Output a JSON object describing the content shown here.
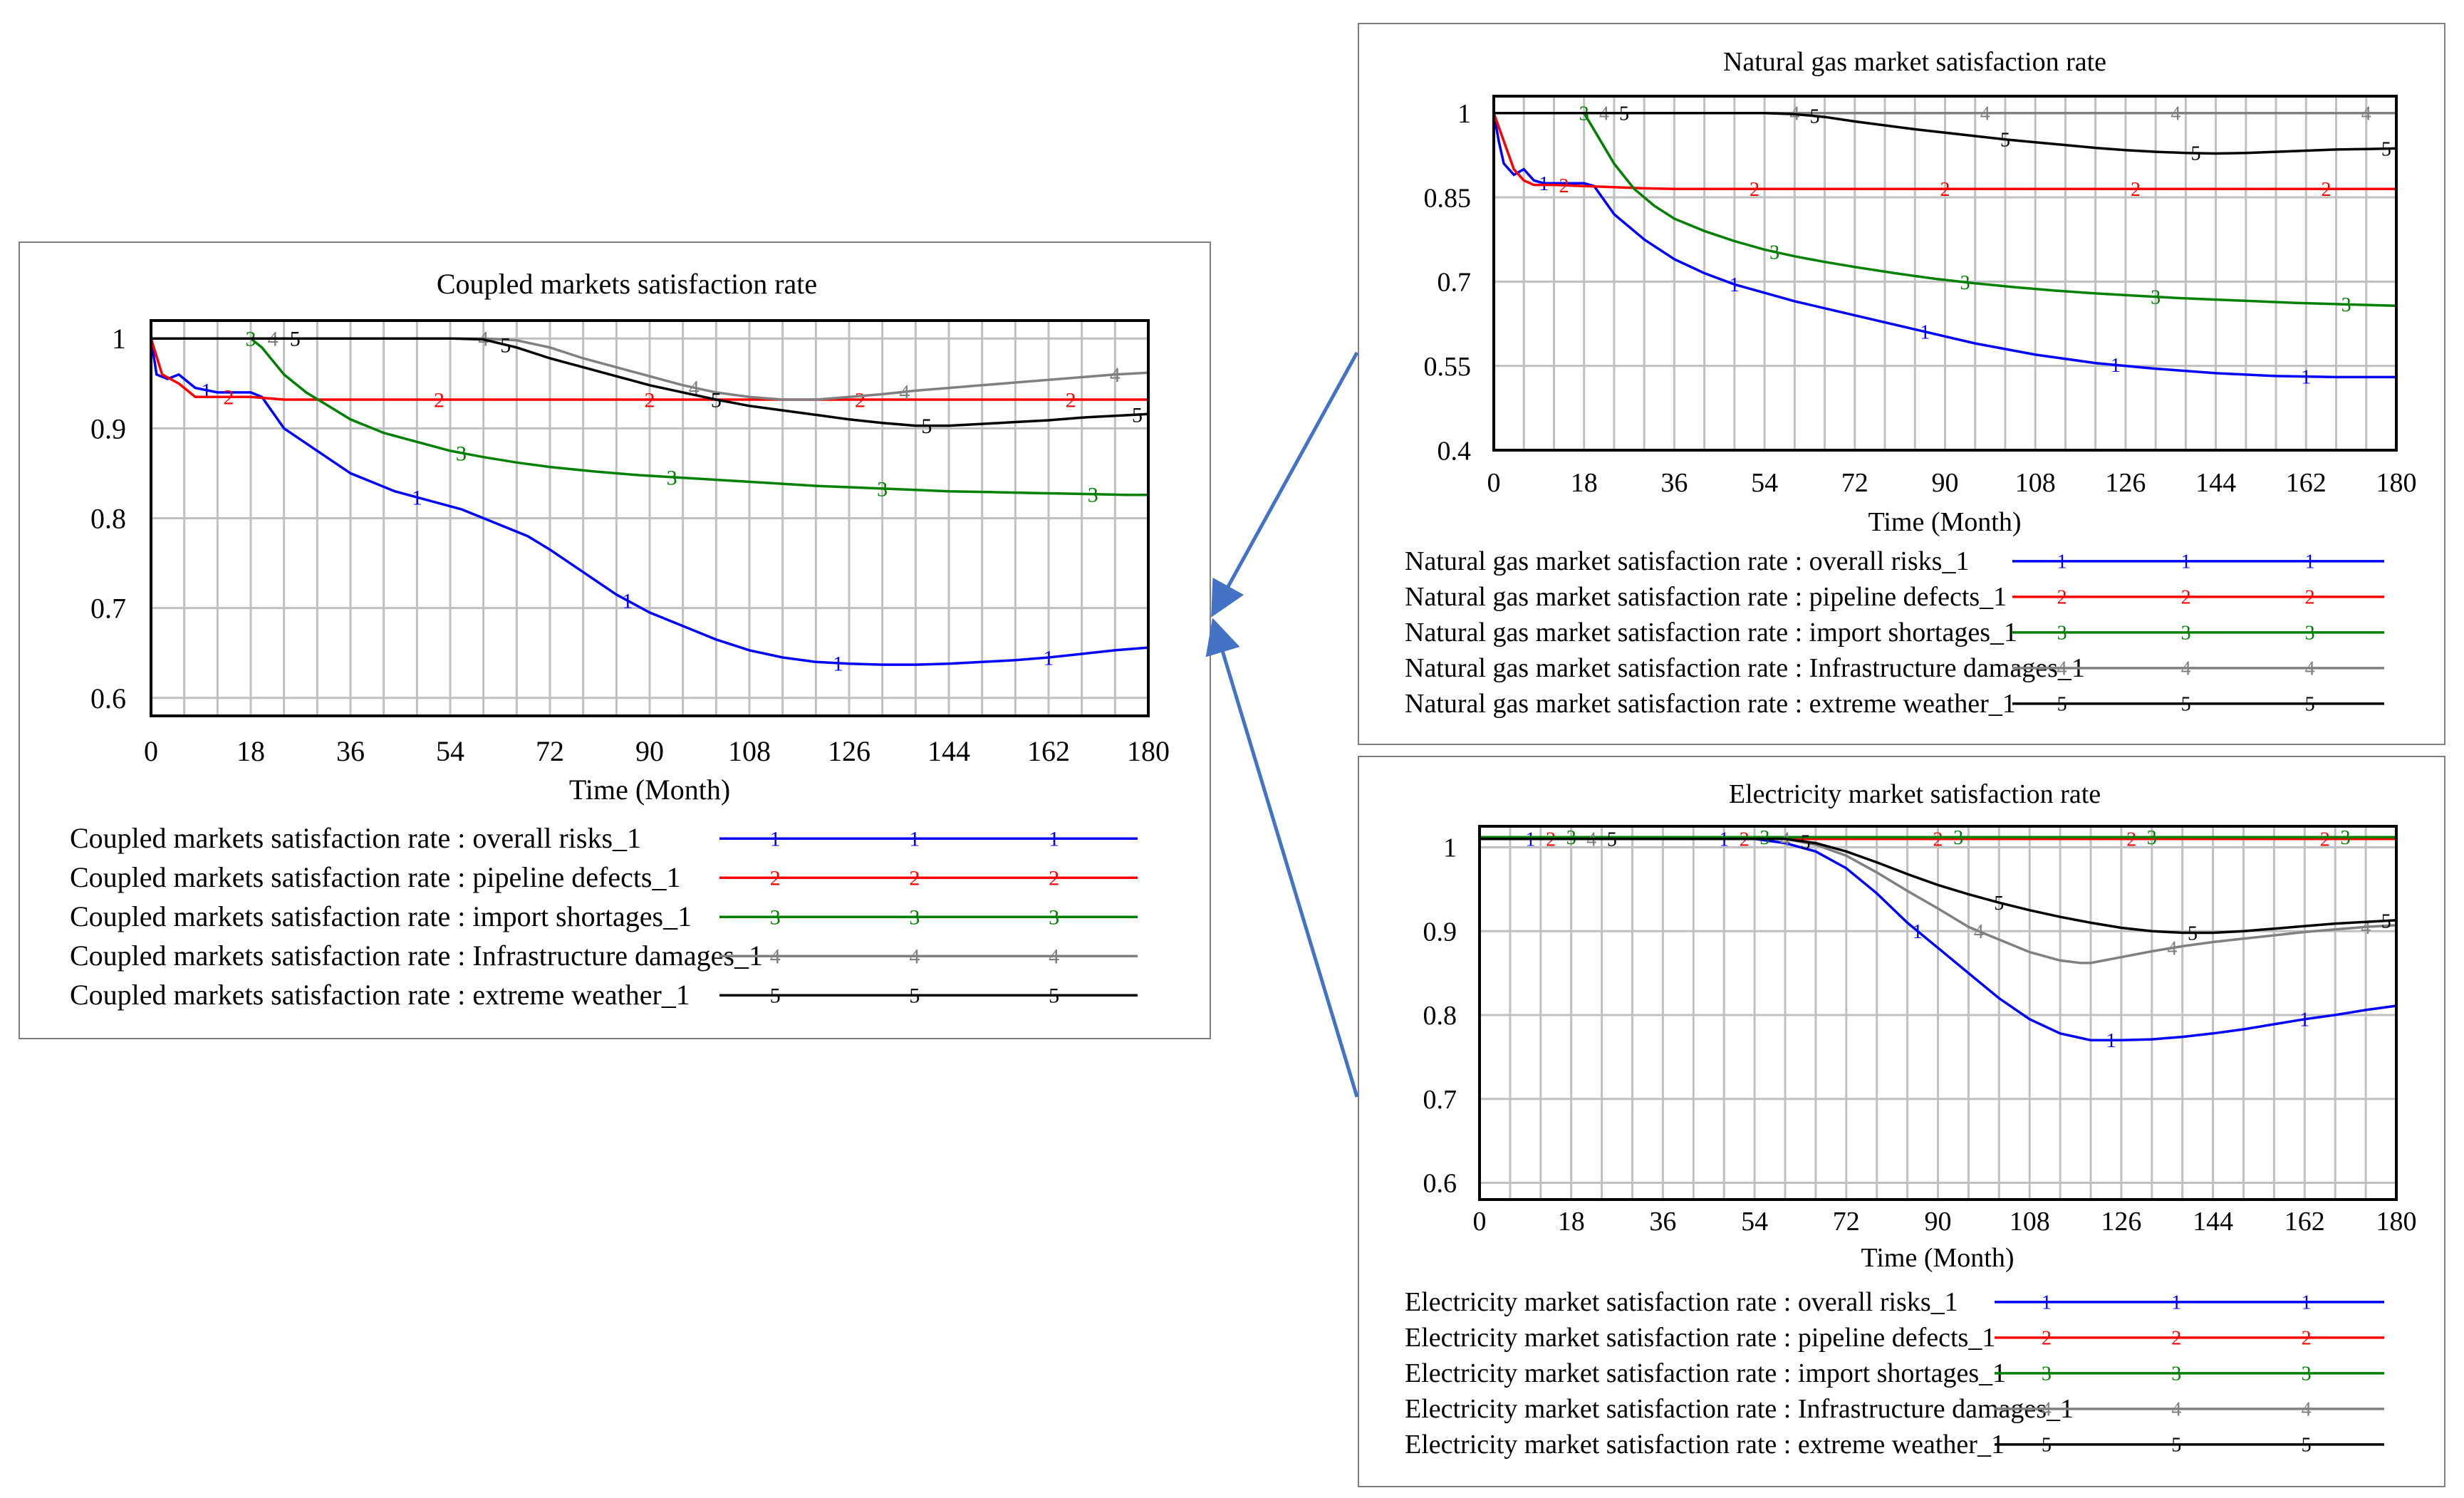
{
  "colors": {
    "series": [
      "#0000ff",
      "#ff0000",
      "#008000",
      "#808080",
      "#000000"
    ],
    "arrow": "#4472c4",
    "grid": "#c0c0c0"
  },
  "chart_data": [
    {
      "id": "coupled",
      "type": "line",
      "title": "Coupled markets satisfaction rate",
      "xlabel": "Time (Month)",
      "ylabel": "",
      "xlim": [
        0,
        180
      ],
      "ylim": [
        0.58,
        1.02
      ],
      "xticks": [
        0,
        18,
        36,
        54,
        72,
        90,
        108,
        126,
        144,
        162,
        180
      ],
      "yticks": [
        0.6,
        0.7,
        0.8,
        0.9,
        1
      ],
      "ytick_labels": [
        "0.6",
        "0.7",
        "0.8",
        "0.9",
        "1"
      ],
      "legend": [
        "Coupled markets satisfaction rate : overall risks_1",
        "Coupled markets satisfaction rate : pipeline defects_1",
        "Coupled markets satisfaction rate : import shortages_1",
        "Coupled markets satisfaction rate : Infrastructure damages_1",
        "Coupled markets satisfaction rate : extreme weather_1"
      ],
      "series": [
        {
          "name": "overall risks",
          "marker": "1",
          "x": [
            0,
            1,
            3,
            5,
            8,
            12,
            16,
            18,
            20,
            24,
            30,
            36,
            44,
            50,
            56,
            62,
            68,
            72,
            78,
            84,
            90,
            96,
            102,
            108,
            114,
            120,
            126,
            132,
            138,
            144,
            150,
            156,
            162,
            168,
            174,
            180
          ],
          "y": [
            1,
            0.96,
            0.955,
            0.96,
            0.945,
            0.94,
            0.94,
            0.94,
            0.935,
            0.9,
            0.875,
            0.85,
            0.83,
            0.82,
            0.81,
            0.795,
            0.78,
            0.765,
            0.74,
            0.715,
            0.695,
            0.68,
            0.665,
            0.653,
            0.645,
            0.64,
            0.638,
            0.637,
            0.637,
            0.638,
            0.64,
            0.642,
            0.645,
            0.649,
            0.653,
            0.656
          ]
        },
        {
          "name": "pipeline defects",
          "marker": "2",
          "x": [
            0,
            2,
            5,
            8,
            12,
            18,
            24,
            30,
            36,
            54,
            72,
            90,
            108,
            126,
            144,
            162,
            180
          ],
          "y": [
            1,
            0.96,
            0.95,
            0.935,
            0.935,
            0.935,
            0.932,
            0.932,
            0.932,
            0.932,
            0.932,
            0.932,
            0.932,
            0.932,
            0.932,
            0.932,
            0.932
          ]
        },
        {
          "name": "import shortages",
          "marker": "3",
          "x": [
            0,
            18,
            20,
            24,
            28,
            32,
            36,
            42,
            48,
            54,
            60,
            66,
            72,
            80,
            88,
            96,
            104,
            112,
            120,
            128,
            136,
            144,
            152,
            160,
            168,
            176,
            180
          ],
          "y": [
            1,
            1,
            0.99,
            0.96,
            0.94,
            0.925,
            0.91,
            0.895,
            0.885,
            0.875,
            0.868,
            0.862,
            0.857,
            0.852,
            0.848,
            0.845,
            0.842,
            0.839,
            0.836,
            0.834,
            0.832,
            0.83,
            0.829,
            0.828,
            0.827,
            0.826,
            0.826
          ]
        },
        {
          "name": "Infrastructure damages",
          "marker": "4",
          "x": [
            0,
            54,
            60,
            66,
            72,
            78,
            84,
            90,
            96,
            102,
            108,
            114,
            120,
            126,
            132,
            138,
            144,
            150,
            156,
            162,
            168,
            174,
            180
          ],
          "y": [
            1,
            1,
            1,
            0.998,
            0.99,
            0.978,
            0.968,
            0.958,
            0.948,
            0.94,
            0.935,
            0.932,
            0.932,
            0.935,
            0.938,
            0.942,
            0.945,
            0.948,
            0.951,
            0.954,
            0.957,
            0.96,
            0.962
          ]
        },
        {
          "name": "extreme weather",
          "marker": "5",
          "x": [
            0,
            54,
            60,
            66,
            72,
            78,
            84,
            90,
            96,
            102,
            108,
            114,
            120,
            126,
            132,
            138,
            144,
            150,
            156,
            162,
            168,
            174,
            180
          ],
          "y": [
            1,
            1,
            0.999,
            0.99,
            0.978,
            0.968,
            0.958,
            0.948,
            0.94,
            0.932,
            0.925,
            0.92,
            0.915,
            0.91,
            0.906,
            0.903,
            0.903,
            0.905,
            0.907,
            0.909,
            0.912,
            0.914,
            0.916
          ]
        }
      ]
    },
    {
      "id": "gas",
      "type": "line",
      "title": "Natural gas market satisfaction rate",
      "xlabel": "Time (Month)",
      "ylabel": "",
      "xlim": [
        0,
        180
      ],
      "ylim": [
        0.4,
        1.03
      ],
      "xticks": [
        0,
        18,
        36,
        54,
        72,
        90,
        108,
        126,
        144,
        162,
        180
      ],
      "yticks": [
        0.4,
        0.55,
        0.7,
        0.85,
        1
      ],
      "ytick_labels": [
        "0.4",
        "0.55",
        "0.7",
        "0.85",
        "1"
      ],
      "legend": [
        "Natural gas market satisfaction rate : overall risks_1",
        "Natural gas market satisfaction rate : pipeline defects_1",
        "Natural gas market satisfaction rate : import shortages_1",
        "Natural gas market satisfaction rate : Infrastructure damages_1",
        "Natural gas market satisfaction rate : extreme weather_1"
      ],
      "series": [
        {
          "name": "overall risks",
          "marker": "1",
          "x": [
            0,
            1,
            2,
            4,
            6,
            8,
            10,
            14,
            18,
            20,
            24,
            30,
            36,
            42,
            48,
            54,
            60,
            72,
            84,
            96,
            108,
            120,
            132,
            144,
            156,
            168,
            180
          ],
          "y": [
            1,
            0.95,
            0.91,
            0.89,
            0.9,
            0.88,
            0.875,
            0.875,
            0.875,
            0.87,
            0.82,
            0.775,
            0.74,
            0.715,
            0.695,
            0.68,
            0.665,
            0.64,
            0.615,
            0.59,
            0.57,
            0.555,
            0.545,
            0.537,
            0.532,
            0.53,
            0.53
          ]
        },
        {
          "name": "pipeline defects",
          "marker": "2",
          "x": [
            0,
            2,
            4,
            6,
            8,
            12,
            18,
            24,
            30,
            36,
            54,
            72,
            90,
            108,
            126,
            144,
            162,
            180
          ],
          "y": [
            1,
            0.95,
            0.9,
            0.88,
            0.872,
            0.872,
            0.87,
            0.868,
            0.866,
            0.865,
            0.865,
            0.865,
            0.865,
            0.865,
            0.865,
            0.865,
            0.865,
            0.865
          ]
        },
        {
          "name": "import shortages",
          "marker": "3",
          "x": [
            0,
            18,
            20,
            24,
            28,
            32,
            36,
            42,
            48,
            54,
            60,
            66,
            72,
            80,
            88,
            96,
            104,
            112,
            120,
            128,
            136,
            144,
            152,
            160,
            168,
            176,
            180
          ],
          "y": [
            1,
            1,
            0.97,
            0.91,
            0.865,
            0.835,
            0.812,
            0.79,
            0.772,
            0.757,
            0.745,
            0.735,
            0.726,
            0.715,
            0.705,
            0.697,
            0.69,
            0.684,
            0.679,
            0.675,
            0.671,
            0.668,
            0.665,
            0.662,
            0.66,
            0.658,
            0.657
          ]
        },
        {
          "name": "Infrastructure damages",
          "marker": "4",
          "x": [
            0,
            180
          ],
          "y": [
            1,
            1
          ]
        },
        {
          "name": "extreme weather",
          "marker": "5",
          "x": [
            0,
            54,
            60,
            66,
            72,
            78,
            84,
            90,
            96,
            102,
            108,
            114,
            120,
            126,
            132,
            138,
            144,
            150,
            156,
            162,
            168,
            174,
            180
          ],
          "y": [
            1,
            1,
            0.998,
            0.993,
            0.985,
            0.978,
            0.971,
            0.965,
            0.959,
            0.953,
            0.948,
            0.943,
            0.938,
            0.934,
            0.931,
            0.929,
            0.928,
            0.929,
            0.931,
            0.933,
            0.935,
            0.936,
            0.937
          ]
        }
      ]
    },
    {
      "id": "elec",
      "type": "line",
      "title": "Electricity market satisfaction rate",
      "xlabel": "Time (Month)",
      "ylabel": "",
      "xlim": [
        0,
        180
      ],
      "ylim": [
        0.58,
        1.025
      ],
      "xticks": [
        0,
        18,
        36,
        54,
        72,
        90,
        108,
        126,
        144,
        162,
        180
      ],
      "yticks": [
        0.6,
        0.7,
        0.8,
        0.9,
        1
      ],
      "ytick_labels": [
        "0.6",
        "0.7",
        "0.8",
        "0.9",
        "1"
      ],
      "legend": [
        "Electricity market satisfaction rate : overall risks_1",
        "Electricity market satisfaction rate : pipeline defects_1",
        "Electricity market satisfaction rate : import shortages_1",
        "Electricity market satisfaction rate : Infrastructure damages_1",
        "Electricity market satisfaction rate : extreme weather_1"
      ],
      "series": [
        {
          "name": "overall risks",
          "marker": "1",
          "x": [
            0,
            54,
            60,
            66,
            72,
            78,
            84,
            90,
            96,
            102,
            108,
            114,
            120,
            126,
            132,
            138,
            144,
            150,
            156,
            162,
            168,
            174,
            180
          ],
          "y": [
            1.01,
            1.01,
            1.005,
            0.995,
            0.975,
            0.945,
            0.91,
            0.88,
            0.85,
            0.82,
            0.795,
            0.778,
            0.77,
            0.77,
            0.771,
            0.774,
            0.778,
            0.783,
            0.789,
            0.795,
            0.8,
            0.806,
            0.811
          ]
        },
        {
          "name": "pipeline defects",
          "marker": "2",
          "x": [
            0,
            180
          ],
          "y": [
            1.01,
            1.01
          ]
        },
        {
          "name": "import shortages",
          "marker": "3",
          "x": [
            0,
            180
          ],
          "y": [
            1.012,
            1.012
          ]
        },
        {
          "name": "Infrastructure damages",
          "marker": "4",
          "x": [
            0,
            60,
            66,
            72,
            78,
            84,
            90,
            96,
            102,
            108,
            114,
            118,
            120,
            126,
            132,
            138,
            144,
            150,
            156,
            162,
            168,
            174,
            180
          ],
          "y": [
            1.01,
            1.01,
            1.003,
            0.99,
            0.97,
            0.948,
            0.927,
            0.905,
            0.89,
            0.875,
            0.865,
            0.862,
            0.862,
            0.869,
            0.876,
            0.882,
            0.887,
            0.891,
            0.895,
            0.899,
            0.902,
            0.905,
            0.907
          ]
        },
        {
          "name": "extreme weather",
          "marker": "5",
          "x": [
            0,
            60,
            66,
            72,
            78,
            84,
            90,
            96,
            102,
            108,
            114,
            120,
            126,
            132,
            138,
            144,
            150,
            156,
            162,
            168,
            174,
            180
          ],
          "y": [
            1.01,
            1.01,
            1.005,
            0.995,
            0.982,
            0.968,
            0.955,
            0.944,
            0.934,
            0.925,
            0.917,
            0.91,
            0.904,
            0.9,
            0.898,
            0.898,
            0.9,
            0.903,
            0.906,
            0.909,
            0.911,
            0.913
          ]
        }
      ]
    }
  ]
}
